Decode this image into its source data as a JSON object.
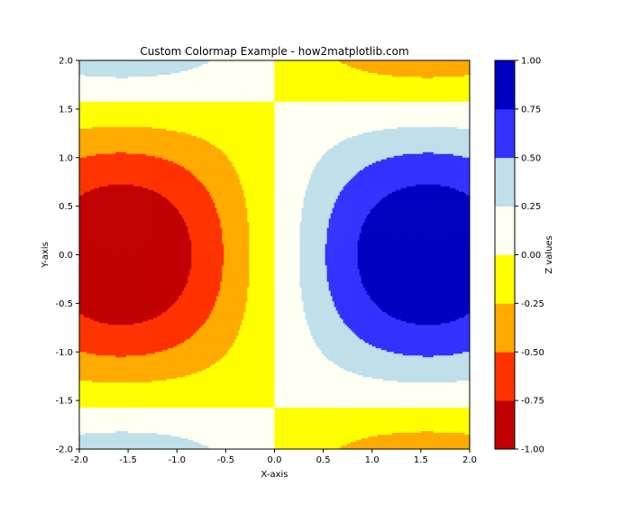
{
  "chart_data": {
    "type": "heatmap",
    "subtype": "filled-contour",
    "title": "Custom Colormap Example - how2matplotlib.com",
    "xlabel": "X-axis",
    "ylabel": "Y-axis",
    "xlim": [
      -2,
      2
    ],
    "ylim": [
      -2,
      2
    ],
    "x_ticks": [
      -2.0,
      -1.5,
      -1.0,
      -0.5,
      0.0,
      0.5,
      1.0,
      1.5,
      2.0
    ],
    "y_ticks": [
      -2.0,
      -1.5,
      -1.0,
      -0.5,
      0.0,
      0.5,
      1.0,
      1.5,
      2.0
    ],
    "x_tick_labels": [
      "-2.0",
      "-1.5",
      "-1.0",
      "-0.5",
      "0.0",
      "0.5",
      "1.0",
      "1.5",
      "2.0"
    ],
    "y_tick_labels": [
      "-2.0",
      "-1.5",
      "-1.0",
      "-0.5",
      "0.0",
      "0.5",
      "1.0",
      "1.5",
      "2.0"
    ],
    "field": "z = sin(x) * cos(y)",
    "grid": false,
    "colorbar": {
      "label": "Z values",
      "ticks": [
        -1.0,
        -0.75,
        -0.5,
        -0.25,
        0.0,
        0.25,
        0.5,
        0.75,
        1.0
      ],
      "tick_labels": [
        "-1.00",
        "-0.75",
        "-0.50",
        "-0.25",
        "0.00",
        "0.25",
        "0.50",
        "0.75",
        "1.00"
      ],
      "levels": [
        -1.0,
        -0.75,
        -0.5,
        -0.25,
        0.0,
        0.25,
        0.5,
        0.75,
        1.0
      ],
      "colors": [
        "#c00000",
        "#ff3300",
        "#ffaa00",
        "#ffff00",
        "#fffff2",
        "#bfe0ea",
        "#3333ff",
        "#0000c0"
      ]
    }
  }
}
